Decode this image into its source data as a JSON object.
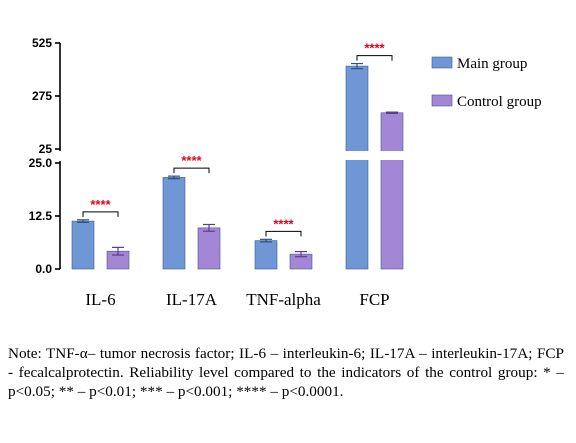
{
  "chart_data": {
    "type": "bar",
    "categories": [
      "IL-6",
      "IL-17A",
      "TNF-alpha",
      "FCP"
    ],
    "series": [
      {
        "name": "Main group",
        "values": [
          11.3,
          21.6,
          6.7,
          416
        ],
        "errors": [
          0.3,
          0.3,
          0.3,
          12
        ],
        "color": "#6f97d6"
      },
      {
        "name": "Control group",
        "values": [
          4.2,
          9.7,
          3.5,
          196
        ],
        "errors": [
          0.9,
          0.8,
          0.6,
          3
        ],
        "color": "#a486d6"
      }
    ],
    "axis_break": true,
    "lower_ylim": [
      0,
      25
    ],
    "lower_ticks": [
      "0.0",
      "12.5",
      "25.0"
    ],
    "upper_ylim": [
      25,
      525
    ],
    "upper_ticks": [
      "25",
      "275",
      "525"
    ],
    "significance": [
      "****",
      "****",
      "****",
      "****"
    ],
    "legend_position": "top-right",
    "grid": false
  },
  "note": "Note: TNF-α– tumor necrosis factor; IL-6 – interleukin-6; IL-17A – interleukin-17A; FCP - fecalcalprotectin. Reliability level compared to the indicators of the control group: * – p<0.05; ** – p<0.01; *** – p<0.001; **** – p<0.0001."
}
